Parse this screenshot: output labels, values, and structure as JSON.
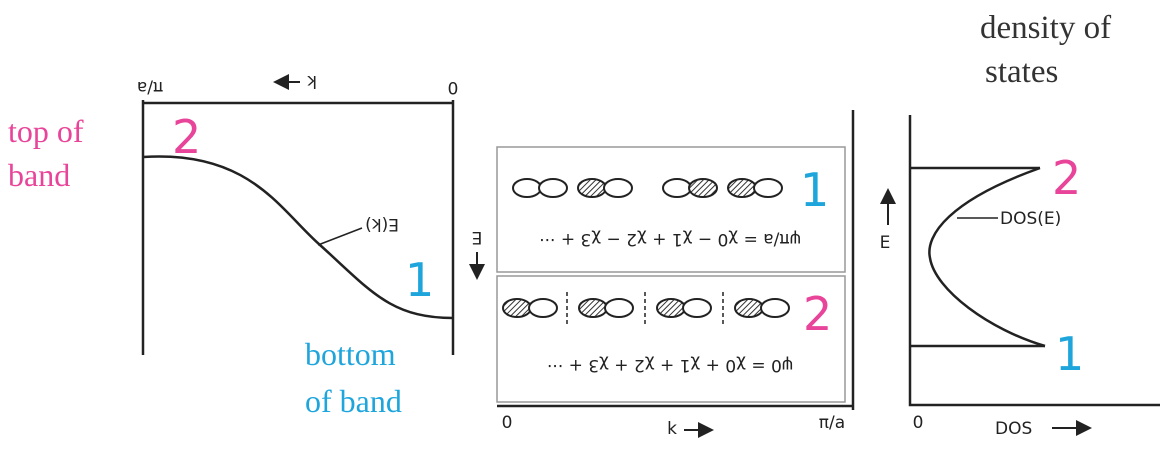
{
  "annotations": {
    "density_of_states": [
      "density of",
      "states"
    ],
    "top_of_band": [
      "top of",
      "band"
    ],
    "bottom_of_band": [
      "bottom",
      "of band"
    ]
  },
  "left_panel": {
    "x_start": "π/a",
    "x_end": "0",
    "x_axis": "k",
    "y_axis": "E",
    "curve_label": "E(k)",
    "label_top": "2",
    "label_bottom": "1"
  },
  "middle_panel": {
    "orbital_rows": [
      {
        "label": "1",
        "equation": "ψπ/a = χ0 − χ1 + χ2 − χ3 + ···"
      },
      {
        "label": "2",
        "equation": "ψ0 = χ0 + χ1 + χ2 + χ3 + ···"
      }
    ],
    "x_start": "0",
    "x_axis": "k",
    "x_end": "π/a"
  },
  "right_panel": {
    "y_axis": "E",
    "curve_label": "DOS(E)",
    "x_start": "0",
    "x_axis": "DOS",
    "label_top": "2",
    "label_bottom": "1"
  }
}
